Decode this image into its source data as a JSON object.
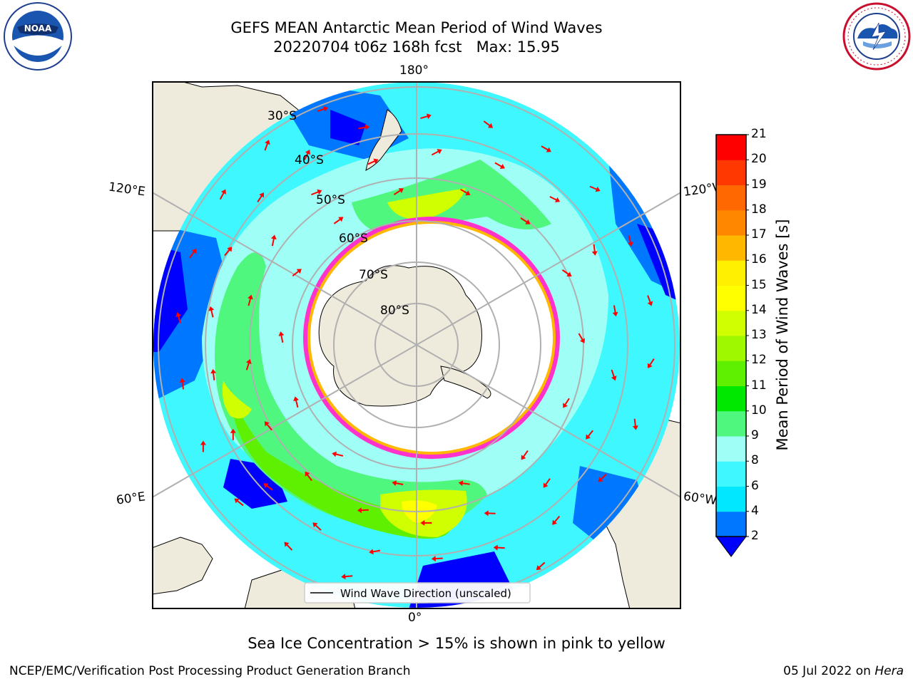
{
  "header": {
    "title_line1": "GEFS MEAN Antarctic Mean Period of Wind Waves",
    "title_line2": "20220704 t06z 168h fcst   Max: 15.95"
  },
  "logos": {
    "left": {
      "icon": "noaa-logo",
      "text": "NOAA"
    },
    "right": {
      "icon": "national-weather-service-logo",
      "text": "NATIONAL WEATHER SERVICE"
    }
  },
  "map": {
    "projection": "south-polar-stereographic",
    "longitude_labels": {
      "top": "180°",
      "bottom": "0°",
      "left_upper": "120°E",
      "left_lower": "60°E",
      "right_upper": "120°W",
      "right_lower": "60°W"
    },
    "latitude_labels": [
      "30°S",
      "40°S",
      "50°S",
      "60°S",
      "70°S",
      "80°S"
    ],
    "legend": "Wind Wave Direction (unscaled)",
    "arrow_color": "#ff0000",
    "land_color": "#efebdc"
  },
  "colorbar": {
    "label": "Mean Period of Wind Waves [s]",
    "ticks": [
      "2",
      "4",
      "6",
      "8",
      "9",
      "10",
      "11",
      "12",
      "13",
      "14",
      "15",
      "16",
      "17",
      "18",
      "19",
      "20",
      "21"
    ],
    "colors": [
      "#0077ff",
      "#00e7ff",
      "#3ff7ff",
      "#9ffff7",
      "#4ff77f",
      "#00e700",
      "#5fef00",
      "#9ff700",
      "#cfff00",
      "#ffff00",
      "#ffef00",
      "#ffb700",
      "#ff8700",
      "#ff6700",
      "#ff3700",
      "#ff0000"
    ],
    "extend_color": "#0000ff"
  },
  "caption": "Sea Ice Concentration > 15% is shown in pink to yellow",
  "footer": {
    "left": "NCEP/EMC/Verification Post Processing Product Generation Branch",
    "right_date": "05 Jul 2022 on ",
    "right_host": "Hera"
  }
}
